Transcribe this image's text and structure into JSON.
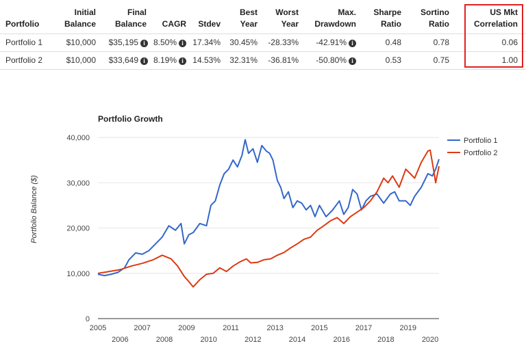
{
  "table": {
    "headers": [
      {
        "line1": "",
        "line2": "Portfolio"
      },
      {
        "line1": "Initial",
        "line2": "Balance"
      },
      {
        "line1": "Final",
        "line2": "Balance"
      },
      {
        "line1": "",
        "line2": "CAGR"
      },
      {
        "line1": "",
        "line2": "Stdev"
      },
      {
        "line1": "Best",
        "line2": "Year"
      },
      {
        "line1": "Worst",
        "line2": "Year"
      },
      {
        "line1": "Max.",
        "line2": "Drawdown"
      },
      {
        "line1": "Sharpe",
        "line2": "Ratio"
      },
      {
        "line1": "Sortino",
        "line2": "Ratio"
      },
      {
        "line1": "US Mkt",
        "line2": "Correlation"
      }
    ],
    "rows": [
      {
        "portfolio": "Portfolio 1",
        "initial": "$10,000",
        "final": "$35,195",
        "cagr": "8.50%",
        "stdev": "17.34%",
        "best": "30.45%",
        "worst": "-28.33%",
        "drawdown": "-42.91%",
        "sharpe": "0.48",
        "sortino": "0.78",
        "correlation": "0.06"
      },
      {
        "portfolio": "Portfolio 2",
        "initial": "$10,000",
        "final": "$33,649",
        "cagr": "8.19%",
        "stdev": "14.53%",
        "best": "32.31%",
        "worst": "-36.81%",
        "drawdown": "-50.80%",
        "sharpe": "0.53",
        "sortino": "0.75",
        "correlation": "1.00"
      }
    ],
    "info_icon_glyph": "i",
    "highlight_color": "#e02020"
  },
  "chart_data": {
    "type": "line",
    "title": "Portfolio Growth",
    "xlabel": "",
    "ylabel": "Portfolio Balance ($)",
    "xlim": [
      2005,
      2020.4
    ],
    "ylim": [
      0,
      40000
    ],
    "yticks": [
      0,
      10000,
      20000,
      30000,
      40000
    ],
    "ytick_labels": [
      "0",
      "10,000",
      "20,000",
      "30,000",
      "40,000"
    ],
    "xticks": [
      2005,
      2006,
      2007,
      2008,
      2009,
      2010,
      2011,
      2012,
      2013,
      2014,
      2015,
      2016,
      2017,
      2018,
      2019,
      2020
    ],
    "grid": true,
    "legend": "right",
    "series": [
      {
        "name": "Portfolio 1",
        "color": "#3366cc",
        "x": [
          2005,
          2005.3,
          2005.6,
          2005.9,
          2006.2,
          2006.4,
          2006.7,
          2007.0,
          2007.3,
          2007.6,
          2007.9,
          2008.2,
          2008.5,
          2008.75,
          2008.9,
          2009.1,
          2009.3,
          2009.6,
          2009.9,
          2010.1,
          2010.3,
          2010.5,
          2010.7,
          2010.9,
          2011.1,
          2011.3,
          2011.5,
          2011.65,
          2011.8,
          2012.0,
          2012.2,
          2012.4,
          2012.6,
          2012.75,
          2012.9,
          2013.1,
          2013.25,
          2013.4,
          2013.6,
          2013.8,
          2014.0,
          2014.2,
          2014.4,
          2014.6,
          2014.8,
          2015.0,
          2015.3,
          2015.6,
          2015.9,
          2016.1,
          2016.3,
          2016.5,
          2016.7,
          2016.9,
          2017.1,
          2017.3,
          2017.6,
          2017.9,
          2018.2,
          2018.4,
          2018.6,
          2018.9,
          2019.1,
          2019.3,
          2019.6,
          2019.9,
          2020.1,
          2020.25,
          2020.4
        ],
        "y": [
          9800,
          9500,
          9800,
          10200,
          11200,
          13000,
          14500,
          14200,
          15000,
          16500,
          18000,
          20500,
          19500,
          21000,
          16500,
          18500,
          19000,
          21000,
          20500,
          25000,
          26000,
          29500,
          32000,
          33000,
          35000,
          33500,
          36000,
          39500,
          36500,
          37500,
          34500,
          38200,
          37000,
          36500,
          35000,
          30500,
          29000,
          26500,
          28000,
          24500,
          26000,
          25500,
          24000,
          25000,
          22500,
          25000,
          22500,
          24000,
          26000,
          23000,
          24500,
          28500,
          27500,
          24000,
          26000,
          27000,
          27500,
          25500,
          27500,
          28000,
          26000,
          26000,
          25000,
          27000,
          29000,
          32000,
          31500,
          33000,
          35195
        ]
      },
      {
        "name": "Portfolio 2",
        "color": "#dc3912",
        "x": [
          2005,
          2005.5,
          2006.0,
          2006.5,
          2007.0,
          2007.5,
          2007.9,
          2008.3,
          2008.6,
          2008.9,
          2009.1,
          2009.3,
          2009.6,
          2009.9,
          2010.2,
          2010.5,
          2010.8,
          2011.1,
          2011.4,
          2011.7,
          2011.9,
          2012.2,
          2012.5,
          2012.8,
          2013.1,
          2013.4,
          2013.7,
          2014.0,
          2014.3,
          2014.6,
          2014.9,
          2015.2,
          2015.5,
          2015.8,
          2016.1,
          2016.4,
          2016.7,
          2017.0,
          2017.3,
          2017.6,
          2017.9,
          2018.1,
          2018.3,
          2018.6,
          2018.9,
          2019.1,
          2019.3,
          2019.6,
          2019.9,
          2020.0,
          2020.15,
          2020.25,
          2020.4
        ],
        "y": [
          10000,
          10400,
          10800,
          11600,
          12200,
          13000,
          14000,
          13200,
          11600,
          9300,
          8200,
          7000,
          8600,
          9800,
          10000,
          11200,
          10400,
          11600,
          12500,
          13200,
          12300,
          12400,
          13000,
          13200,
          14000,
          14600,
          15600,
          16500,
          17500,
          18000,
          19500,
          20500,
          21600,
          22300,
          21000,
          22500,
          23500,
          24500,
          26000,
          28000,
          31000,
          30000,
          31500,
          29000,
          33000,
          32000,
          31000,
          34500,
          37000,
          37200,
          33000,
          30000,
          33649
        ]
      }
    ]
  }
}
